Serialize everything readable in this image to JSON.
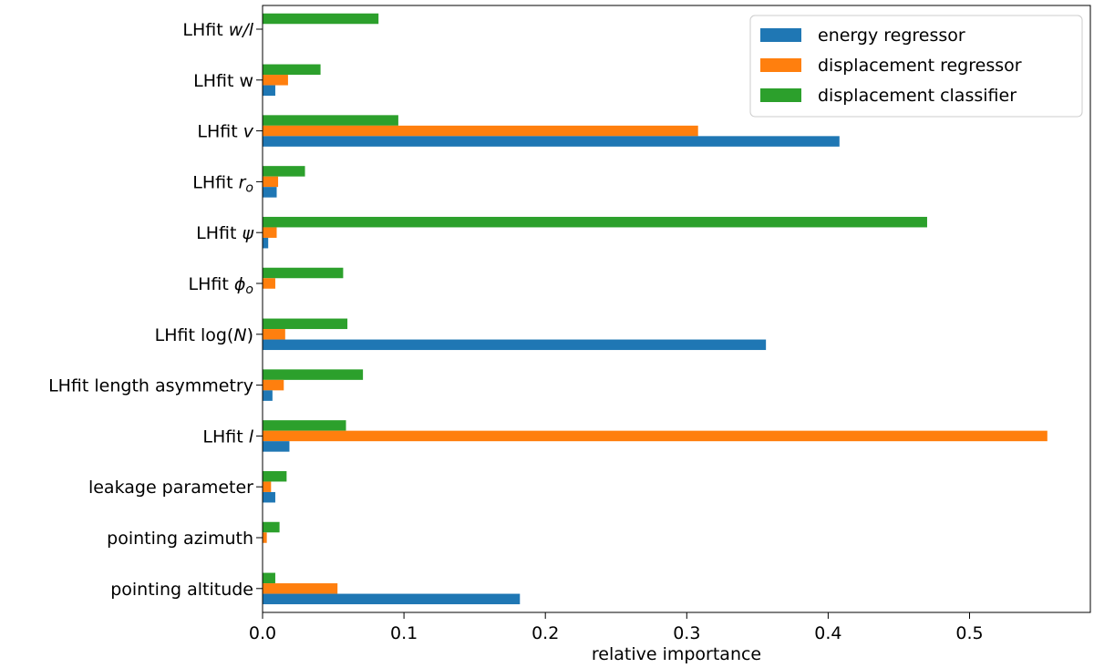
{
  "chart_data": {
    "type": "bar",
    "orientation": "horizontal",
    "title": "",
    "xlabel": "relative importance",
    "ylabel": "",
    "xlim": [
      0,
      0.58
    ],
    "xticks": [
      0.0,
      0.1,
      0.2,
      0.3,
      0.4,
      0.5
    ],
    "xtick_labels": [
      "0.0",
      "0.1",
      "0.2",
      "0.3",
      "0.4",
      "0.5"
    ],
    "legend_position": "top-right",
    "categories": [
      {
        "label": "LHfit w/l",
        "prefix": "LHfit ",
        "math": "w/l",
        "suffix": ""
      },
      {
        "label": "LHfit w",
        "prefix": "LHfit w",
        "math": "",
        "suffix": ""
      },
      {
        "label": "LHfit v",
        "prefix": "LHfit ",
        "math": "v",
        "suffix": ""
      },
      {
        "label": "LHfit r_o",
        "prefix": "LHfit ",
        "math": "r",
        "sub": "o",
        "suffix": ""
      },
      {
        "label": "LHfit ψ",
        "prefix": "LHfit ",
        "math": "ψ",
        "suffix": ""
      },
      {
        "label": "LHfit φ_o",
        "prefix": "LHfit ",
        "math": "ϕ",
        "sub": "o",
        "suffix": ""
      },
      {
        "label": "LHfit log(N)",
        "prefix": "LHfit log(",
        "math": "N",
        "suffix": ")"
      },
      {
        "label": "LHfit length asymmetry",
        "prefix": "LHfit length asymmetry",
        "math": "",
        "suffix": ""
      },
      {
        "label": "LHfit l",
        "prefix": "LHfit ",
        "math": "l",
        "suffix": ""
      },
      {
        "label": "leakage parameter",
        "prefix": "leakage parameter",
        "math": "",
        "suffix": ""
      },
      {
        "label": "pointing azimuth",
        "prefix": "pointing azimuth",
        "math": "",
        "suffix": ""
      },
      {
        "label": "pointing altitude",
        "prefix": "pointing altitude",
        "math": "",
        "suffix": ""
      }
    ],
    "series": [
      {
        "name": "energy regressor",
        "color": "#1f77b4",
        "values": [
          0.0,
          0.009,
          0.408,
          0.01,
          0.004,
          0.0,
          0.356,
          0.007,
          0.019,
          0.009,
          0.0,
          0.182
        ]
      },
      {
        "name": "displacement regressor",
        "color": "#ff7f0e",
        "values": [
          0.0,
          0.018,
          0.308,
          0.011,
          0.01,
          0.009,
          0.016,
          0.015,
          0.555,
          0.006,
          0.003,
          0.053
        ]
      },
      {
        "name": "displacement classifier",
        "color": "#2ca02c",
        "values": [
          0.082,
          0.041,
          0.096,
          0.03,
          0.47,
          0.057,
          0.06,
          0.071,
          0.059,
          0.017,
          0.012,
          0.009
        ]
      }
    ]
  }
}
